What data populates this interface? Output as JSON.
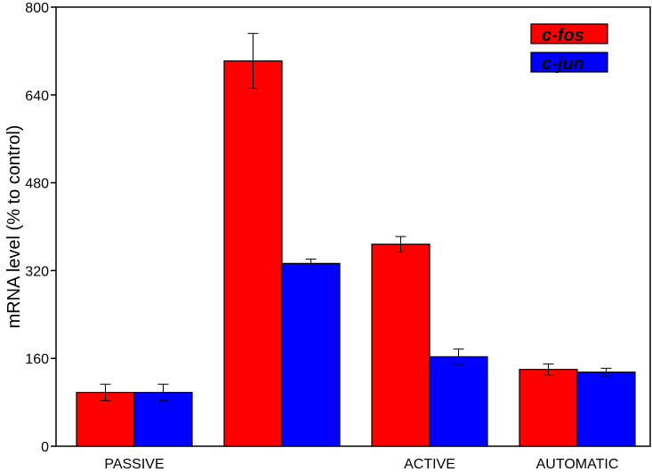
{
  "chart_data": {
    "type": "bar",
    "categories": [
      "PASSIVE",
      "",
      "ACTIVE",
      "AUTOMATIC"
    ],
    "series": [
      {
        "name": "c-fos",
        "color": "#ff0000",
        "values": [
          98,
          702,
          368,
          140
        ],
        "errors": [
          15,
          50,
          14,
          10
        ]
      },
      {
        "name": "c-jun",
        "color": "#0000ff",
        "values": [
          98,
          333,
          163,
          135
        ],
        "errors": [
          15,
          8,
          14,
          7
        ]
      }
    ],
    "ylabel": "mRNA level (% to control)",
    "xlabel": "",
    "title": "",
    "ylim": [
      0,
      800
    ],
    "yticks": [
      "0",
      "160",
      "320",
      "480",
      "640",
      "800"
    ],
    "legend_position": "top-right",
    "grid": false
  }
}
